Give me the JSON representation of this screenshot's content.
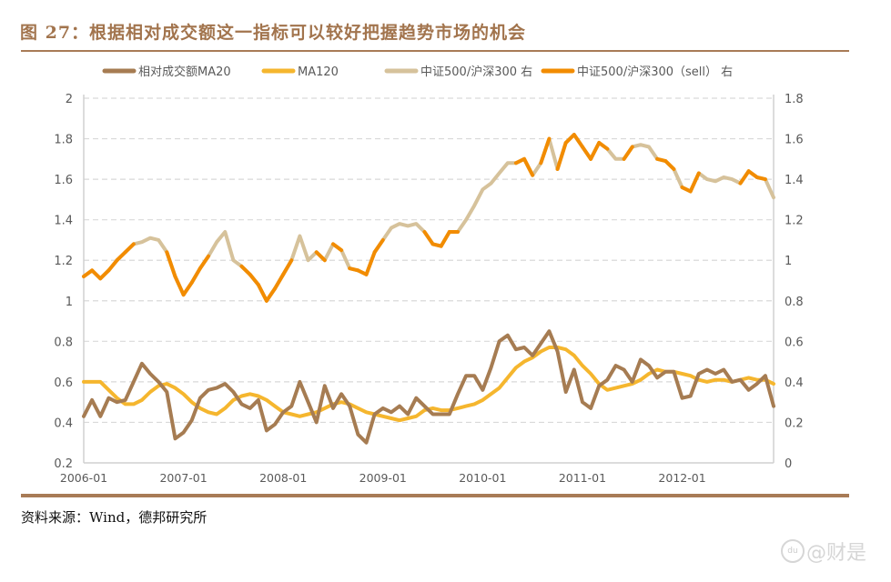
{
  "title": "图 27：根据相对成交额这一指标可以较好把握趋势市场的机会",
  "source": "资料来源：Wind，德邦研究所",
  "watermark": "@财是",
  "chart_data": {
    "type": "line",
    "title": "",
    "xlabel": "",
    "ylabel": "",
    "grid": true,
    "legend_position": "top",
    "x_ticks": [
      "2006-01",
      "2007-01",
      "2008-01",
      "2009-01",
      "2010-01",
      "2011-01",
      "2012-01"
    ],
    "x_range": [
      "2006-01",
      "2012-12"
    ],
    "y_left": {
      "range": [
        0.2,
        2
      ],
      "ticks": [
        "0.2",
        "0.4",
        "0.6",
        "0.8",
        "1",
        "1.2",
        "1.4",
        "1.6",
        "1.8",
        "2"
      ]
    },
    "y_right": {
      "range": [
        0,
        1.8
      ],
      "ticks": [
        "0",
        "0.2",
        "0.4",
        "0.6",
        "0.8",
        "1",
        "1.2",
        "1.4",
        "1.6",
        "1.8"
      ]
    },
    "x": [
      "2006-01",
      "2006-02",
      "2006-03",
      "2006-04",
      "2006-05",
      "2006-06",
      "2006-07",
      "2006-08",
      "2006-09",
      "2006-10",
      "2006-11",
      "2006-12",
      "2007-01",
      "2007-02",
      "2007-03",
      "2007-04",
      "2007-05",
      "2007-06",
      "2007-07",
      "2007-08",
      "2007-09",
      "2007-10",
      "2007-11",
      "2007-12",
      "2008-01",
      "2008-02",
      "2008-03",
      "2008-04",
      "2008-05",
      "2008-06",
      "2008-07",
      "2008-08",
      "2008-09",
      "2008-10",
      "2008-11",
      "2008-12",
      "2009-01",
      "2009-02",
      "2009-03",
      "2009-04",
      "2009-05",
      "2009-06",
      "2009-07",
      "2009-08",
      "2009-09",
      "2009-10",
      "2009-11",
      "2009-12",
      "2010-01",
      "2010-02",
      "2010-03",
      "2010-04",
      "2010-05",
      "2010-06",
      "2010-07",
      "2010-08",
      "2010-09",
      "2010-10",
      "2010-11",
      "2010-12",
      "2011-01",
      "2011-02",
      "2011-03",
      "2011-04",
      "2011-05",
      "2011-06",
      "2011-07",
      "2011-08",
      "2011-09",
      "2011-10",
      "2011-11",
      "2011-12",
      "2012-01",
      "2012-02",
      "2012-03",
      "2012-04",
      "2012-05",
      "2012-06",
      "2012-07",
      "2012-08",
      "2012-09",
      "2012-10",
      "2012-11",
      "2012-12"
    ],
    "series": [
      {
        "name": "相对成交额MA20",
        "axis": "left",
        "color": "#a67c52",
        "values": [
          0.43,
          0.51,
          0.43,
          0.52,
          0.5,
          0.51,
          0.6,
          0.69,
          0.64,
          0.6,
          0.55,
          0.32,
          0.35,
          0.41,
          0.52,
          0.56,
          0.57,
          0.59,
          0.55,
          0.49,
          0.47,
          0.51,
          0.36,
          0.39,
          0.45,
          0.48,
          0.6,
          0.5,
          0.4,
          0.58,
          0.47,
          0.54,
          0.48,
          0.34,
          0.3,
          0.44,
          0.47,
          0.45,
          0.48,
          0.44,
          0.52,
          0.48,
          0.44,
          0.44,
          0.44,
          0.54,
          0.63,
          0.63,
          0.56,
          0.67,
          0.8,
          0.83,
          0.76,
          0.77,
          0.73,
          0.79,
          0.85,
          0.75,
          0.55,
          0.66,
          0.5,
          0.47,
          0.58,
          0.61,
          0.68,
          0.66,
          0.6,
          0.71,
          0.68,
          0.62,
          0.65,
          0.65,
          0.52,
          0.53,
          0.64,
          0.66,
          0.64,
          0.66,
          0.6,
          0.61,
          0.56,
          0.59,
          0.63,
          0.48
        ]
      },
      {
        "name": "MA120",
        "axis": "left",
        "color": "#f5b62e",
        "values": [
          0.6,
          0.6,
          0.6,
          0.56,
          0.52,
          0.49,
          0.49,
          0.51,
          0.55,
          0.58,
          0.59,
          0.57,
          0.54,
          0.5,
          0.47,
          0.45,
          0.44,
          0.47,
          0.51,
          0.53,
          0.54,
          0.53,
          0.51,
          0.48,
          0.45,
          0.44,
          0.43,
          0.44,
          0.45,
          0.47,
          0.49,
          0.5,
          0.49,
          0.47,
          0.45,
          0.44,
          0.43,
          0.42,
          0.41,
          0.42,
          0.43,
          0.46,
          0.47,
          0.46,
          0.46,
          0.47,
          0.48,
          0.49,
          0.51,
          0.54,
          0.57,
          0.62,
          0.67,
          0.7,
          0.72,
          0.75,
          0.77,
          0.77,
          0.76,
          0.73,
          0.68,
          0.64,
          0.59,
          0.56,
          0.57,
          0.58,
          0.59,
          0.61,
          0.64,
          0.66,
          0.65,
          0.65,
          0.64,
          0.63,
          0.61,
          0.6,
          0.61,
          0.61,
          0.6,
          0.61,
          0.62,
          0.61,
          0.61,
          0.59
        ]
      },
      {
        "name": "中证500/沪深300 右",
        "axis": "right",
        "color": "#d6c29b",
        "values": [
          0.92,
          0.95,
          0.91,
          0.95,
          1.0,
          1.04,
          1.08,
          1.09,
          1.11,
          1.1,
          1.04,
          0.92,
          0.83,
          0.89,
          0.96,
          1.02,
          1.09,
          1.14,
          1.0,
          0.97,
          0.93,
          0.88,
          0.8,
          0.86,
          0.93,
          1.0,
          1.12,
          1.0,
          1.04,
          1.0,
          1.08,
          1.05,
          0.96,
          0.95,
          0.93,
          1.04,
          1.1,
          1.16,
          1.18,
          1.17,
          1.18,
          1.14,
          1.08,
          1.07,
          1.14,
          1.14,
          1.2,
          1.27,
          1.35,
          1.38,
          1.43,
          1.48,
          1.48,
          1.5,
          1.42,
          1.48,
          1.6,
          1.45,
          1.58,
          1.62,
          1.56,
          1.5,
          1.58,
          1.55,
          1.5,
          1.5,
          1.56,
          1.57,
          1.56,
          1.5,
          1.49,
          1.45,
          1.36,
          1.34,
          1.43,
          1.4,
          1.39,
          1.41,
          1.4,
          1.38,
          1.44,
          1.41,
          1.4,
          1.31
        ]
      },
      {
        "name": "中证500/沪深300（sell） 右",
        "axis": "right",
        "color": "#f28c00",
        "sell_flags": [
          1,
          1,
          1,
          1,
          1,
          1,
          0,
          0,
          0,
          0,
          1,
          1,
          1,
          1,
          1,
          0,
          0,
          0,
          0,
          1,
          1,
          1,
          1,
          1,
          1,
          0,
          0,
          0,
          1,
          0,
          1,
          0,
          1,
          1,
          1,
          1,
          0,
          0,
          0,
          0,
          0,
          1,
          1,
          1,
          1,
          0,
          0,
          0,
          0,
          0,
          0,
          0,
          1,
          1,
          0,
          1,
          0,
          1,
          1,
          1,
          1,
          1,
          1,
          0,
          0,
          1,
          0,
          0,
          0,
          1,
          1,
          0,
          1,
          1,
          0,
          0,
          0,
          0,
          0,
          1,
          1,
          1,
          0,
          1
        ]
      }
    ]
  }
}
